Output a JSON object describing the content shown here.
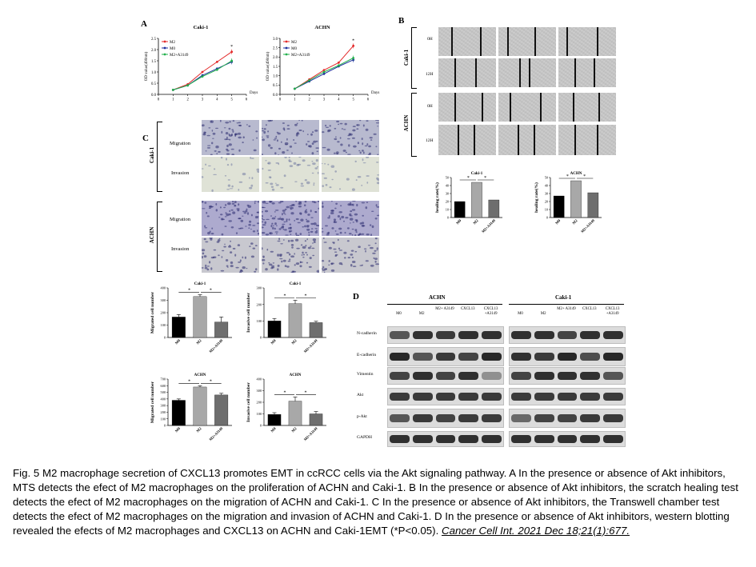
{
  "panels": {
    "A": {
      "label": "A",
      "charts": [
        {
          "title": "Caki-1",
          "ylabel": "OD value(490nm)",
          "xlabel": "Days",
          "legend": [
            "M2",
            "M0",
            "M2+A3149"
          ],
          "star": "*",
          "xticks": [
            "0",
            "1",
            "2",
            "3",
            "4",
            "5",
            "6"
          ],
          "yticks": [
            "0.0",
            "0.5",
            "1.0",
            "1.5",
            "2.0",
            "2.5"
          ]
        },
        {
          "title": "ACHN",
          "ylabel": "OD value(490nm)",
          "xlabel": "Days",
          "legend": [
            "M2",
            "M0",
            "M2+A3149"
          ],
          "star": "*",
          "xticks": [
            "0",
            "1",
            "2",
            "3",
            "4",
            "5",
            "6"
          ],
          "yticks": [
            "0.0",
            "0.5",
            "1.0",
            "1.5",
            "2.0",
            "2.5",
            "3.0"
          ]
        }
      ]
    },
    "B": {
      "label": "B",
      "rows": [
        {
          "group": "Caki-1",
          "time": "0H"
        },
        {
          "group": "Caki-1",
          "time": "12H"
        },
        {
          "group": "ACHN",
          "time": "0H"
        },
        {
          "group": "ACHN",
          "time": "12H"
        }
      ],
      "group_labels": [
        "Caki-1",
        "ACHN"
      ],
      "bar_charts": [
        {
          "title": "Caki-1",
          "ylabel": "healing rate(%)",
          "categories": [
            "M0",
            "M2",
            "M2+A3149"
          ],
          "yticks": [
            "0",
            "10",
            "20",
            "30",
            "40",
            "50"
          ],
          "star": "*"
        },
        {
          "title": "ACHN",
          "ylabel": "healing rate(%)",
          "categories": [
            "M0",
            "M2",
            "M2+A3149"
          ],
          "yticks": [
            "0",
            "10",
            "20",
            "30",
            "40",
            "50"
          ],
          "star": "*"
        }
      ]
    },
    "C": {
      "label": "C",
      "group_labels": [
        "Caki-1",
        "ACHN"
      ],
      "row_labels": [
        "Migration",
        "Invasion",
        "Migration",
        "Invasion"
      ],
      "bar_charts": [
        {
          "title": "Caki-1",
          "ylabel": "Migrated cell number",
          "categories": [
            "M0",
            "M2",
            "M2+A3149"
          ],
          "yticks": [
            "0",
            "100",
            "200",
            "300",
            "400"
          ],
          "star": "*"
        },
        {
          "title": "Caki-1",
          "ylabel": "Invasive cell number",
          "categories": [
            "M0",
            "M2",
            "M2+A3149"
          ],
          "yticks": [
            "0",
            "100",
            "200",
            "300"
          ],
          "star": "*"
        },
        {
          "title": "ACHN",
          "ylabel": "Migrated cell number",
          "categories": [
            "M0",
            "M2",
            "M2+A3149"
          ],
          "yticks": [
            "0",
            "100",
            "200",
            "300",
            "400",
            "500",
            "600",
            "700"
          ],
          "star": "*"
        },
        {
          "title": "ACHN",
          "ylabel": "Invasive cell number",
          "categories": [
            "M0",
            "M2",
            "M2+A3149"
          ],
          "yticks": [
            "0",
            "100",
            "200",
            "300",
            "400"
          ],
          "star": "*"
        }
      ]
    },
    "D": {
      "label": "D",
      "groups": [
        {
          "name": "ACHN",
          "lanes": [
            "M0",
            "M2",
            "M2+ A3149",
            "CXCL13",
            "CXCL13 +A3149"
          ]
        },
        {
          "name": "Caki-1",
          "lanes": [
            "M0",
            "M2",
            "M2+ A3149",
            "CXCL13",
            "CXCL13 +A3149"
          ]
        }
      ],
      "proteins": [
        "N-cadherin",
        "E-cadherin",
        "Vimentin",
        "Akt",
        "p-Akt",
        "GAPDH"
      ]
    }
  },
  "chart_data": [
    {
      "type": "line",
      "title": "Caki-1",
      "xlabel": "Days",
      "ylabel": "OD value(490nm)",
      "x": [
        1,
        2,
        3,
        4,
        5
      ],
      "ylim": [
        0,
        2.5
      ],
      "xlim": [
        0,
        6
      ],
      "series": [
        {
          "name": "M2",
          "color": "#e32b2b",
          "values": [
            0.2,
            0.45,
            1.0,
            1.45,
            1.9
          ]
        },
        {
          "name": "M0",
          "color": "#1f2f9e",
          "values": [
            0.2,
            0.4,
            0.85,
            1.15,
            1.45
          ]
        },
        {
          "name": "M2+A3149",
          "color": "#23b14d",
          "values": [
            0.2,
            0.4,
            0.8,
            1.1,
            1.5
          ]
        }
      ]
    },
    {
      "type": "line",
      "title": "ACHN",
      "xlabel": "Days",
      "ylabel": "OD value(490nm)",
      "x": [
        1,
        2,
        3,
        4,
        5
      ],
      "ylim": [
        0,
        3.0
      ],
      "xlim": [
        0,
        6
      ],
      "series": [
        {
          "name": "M2",
          "color": "#e32b2b",
          "values": [
            0.3,
            0.8,
            1.3,
            1.7,
            2.6
          ]
        },
        {
          "name": "M0",
          "color": "#1f2f9e",
          "values": [
            0.3,
            0.7,
            1.1,
            1.5,
            1.85
          ]
        },
        {
          "name": "M2+A3149",
          "color": "#23b14d",
          "values": [
            0.3,
            0.75,
            1.2,
            1.55,
            1.95
          ]
        }
      ]
    },
    {
      "type": "bar",
      "title": "Caki-1",
      "ylabel": "healing rate(%)",
      "categories": [
        "M0",
        "M2",
        "M2+A3149"
      ],
      "values": [
        20,
        44,
        22
      ],
      "ylim": [
        0,
        50
      ]
    },
    {
      "type": "bar",
      "title": "ACHN",
      "ylabel": "healing rate(%)",
      "categories": [
        "M0",
        "M2",
        "M2+A3149"
      ],
      "values": [
        27,
        46,
        31
      ],
      "ylim": [
        0,
        50
      ]
    },
    {
      "type": "bar",
      "title": "Caki-1",
      "ylabel": "Migrated cell number",
      "categories": [
        "M0",
        "M2",
        "M2+A3149"
      ],
      "values": [
        165,
        330,
        125
      ],
      "errors": [
        20,
        15,
        40
      ],
      "ylim": [
        0,
        400
      ]
    },
    {
      "type": "bar",
      "title": "Caki-1",
      "ylabel": "Invasive cell number",
      "categories": [
        "M0",
        "M2",
        "M2+A3149"
      ],
      "values": [
        100,
        205,
        90
      ],
      "errors": [
        15,
        20,
        8
      ],
      "ylim": [
        0,
        300
      ]
    },
    {
      "type": "bar",
      "title": "ACHN",
      "ylabel": "Migrated cell number",
      "categories": [
        "M0",
        "M2",
        "M2+A3149"
      ],
      "values": [
        380,
        580,
        460
      ],
      "errors": [
        20,
        20,
        25
      ],
      "ylim": [
        0,
        700
      ]
    },
    {
      "type": "bar",
      "title": "ACHN",
      "ylabel": "Invasive cell number",
      "categories": [
        "M0",
        "M2",
        "M2+A3149"
      ],
      "values": [
        95,
        210,
        100
      ],
      "errors": [
        15,
        35,
        20
      ],
      "ylim": [
        0,
        400
      ]
    }
  ],
  "caption": {
    "text": "Fig. 5 M2 macrophage secretion of CXCL13 promotes EMT in ccRCC cells via the Akt signaling pathway. A In the presence or absence of Akt inhibitors, MTS detects the efect of M2 macrophages on the proliferation of ACHN and Caki-1. B In the presence or absence of Akt inhibitors, the scratch healing test detects the efect of M2 macrophages on the migration of ACHN and Caki-1. C In the presence or absence of Akt inhibitors, the Transwell chamber test detects the efect of M2 macrophages on the migration and invasion of ACHN and Caki-1. D In the presence or absence of Akt inhibitors, western blotting revealed the efects of M2 macrophages and CXCL13 on ACHN and Caki-1EMT (*P<0.05). ",
    "citation": "Cancer Cell Int. 2021 Dec 18;21(1):677."
  },
  "colors": {
    "M2": "#e32b2b",
    "M0": "#1f2f9e",
    "M2+A3149": "#23b14d",
    "bar_M0": "#000000",
    "bar_M2": "#a8a8a8",
    "bar_A3149": "#6e6e6e"
  }
}
